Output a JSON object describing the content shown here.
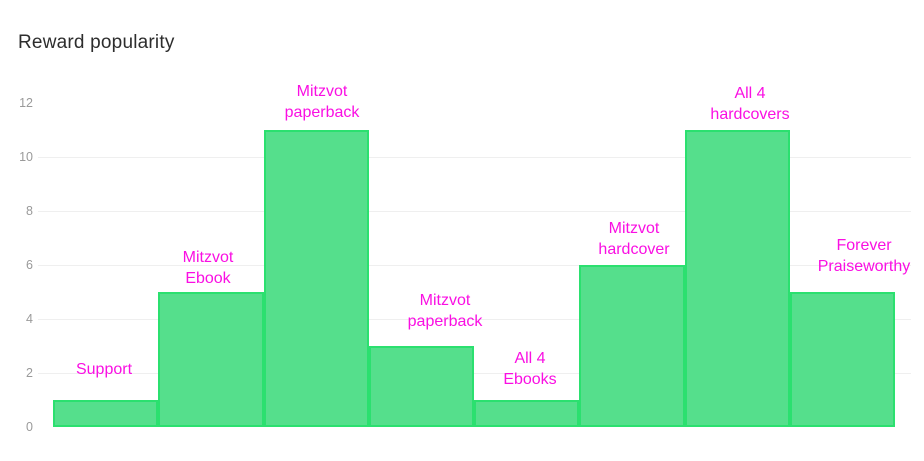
{
  "page": {
    "title": "Reward popularity"
  },
  "colors": {
    "bar_fill": "#55df8c",
    "bar_border": "#2be06f",
    "bar_label": "#fa0fe3",
    "title_text": "#2d2d2d",
    "axis_tick_text": "#9a9a9a",
    "gridline": "#efefef",
    "background": "#ffffff"
  },
  "chart_data": {
    "type": "bar",
    "title": "Reward popularity",
    "categories": [
      "Support",
      "Mitzvot Ebook",
      "Mitzvot paperback",
      "Mitzvot paperback",
      "All 4 Ebooks",
      "Mitzvot hardcover",
      "All 4 hardcovers",
      "Forever Praiseworthy"
    ],
    "values": [
      1,
      5,
      11,
      3,
      1,
      6,
      11,
      5
    ],
    "label_lines": [
      [
        "Support"
      ],
      [
        "Mitzvot",
        "Ebook"
      ],
      [
        "Mitzvot",
        "paperback"
      ],
      [
        "Mitzvot",
        "paperback"
      ],
      [
        "All 4",
        "Ebooks"
      ],
      [
        "Mitzvot",
        "hardcover"
      ],
      [
        "All 4",
        "hardcovers"
      ],
      [
        "Forever",
        "Praiseworthy"
      ]
    ],
    "xlabel": "",
    "ylabel": "",
    "ylim": [
      0,
      12
    ],
    "yticks": [
      0,
      2,
      4,
      6,
      8,
      10,
      12
    ],
    "gridline_values": [
      2,
      4,
      6,
      8,
      10
    ],
    "grid": "horizontal-only",
    "legend": "none",
    "bar_gap": 0,
    "bars_adjacent": true,
    "label_position": "above-bars"
  }
}
